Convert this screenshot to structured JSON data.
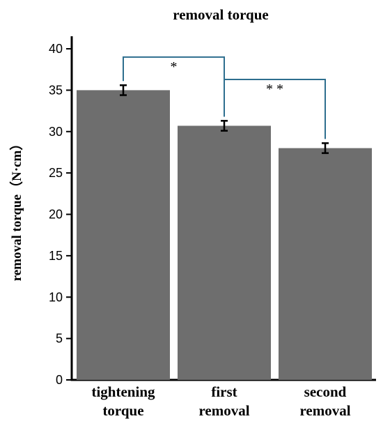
{
  "chart_data": {
    "type": "bar",
    "title": "removal torque",
    "ylabel": "removal torque（N·cm）",
    "xlabel": "",
    "categories": [
      [
        "tightening",
        "torque"
      ],
      [
        "first",
        "removal"
      ],
      [
        "second",
        "removal"
      ]
    ],
    "values": [
      35.0,
      30.7,
      28.0
    ],
    "errors": [
      0.6,
      0.6,
      0.6
    ],
    "ylim": [
      0,
      40
    ],
    "yticks": [
      0,
      5,
      10,
      15,
      20,
      25,
      30,
      35,
      40
    ],
    "grid": false,
    "legend": "none",
    "bar_color": "#6e6e6e",
    "bracket_color": "#2d6e8e",
    "significance": [
      {
        "from": 0,
        "to": 1,
        "label": "*",
        "y": 39.0
      },
      {
        "from": 1,
        "to": 2,
        "label": "* *",
        "y": 36.3
      }
    ]
  }
}
